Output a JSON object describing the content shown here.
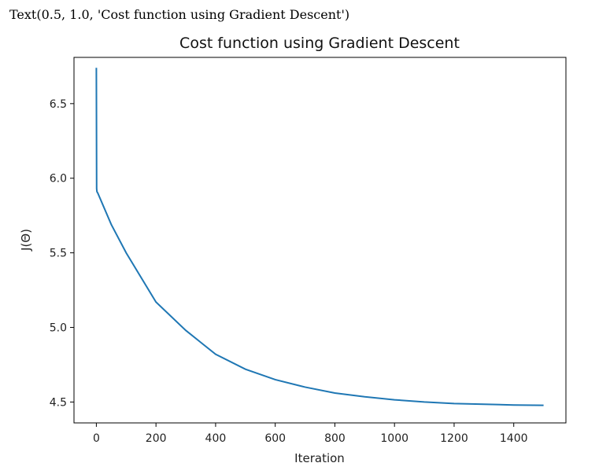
{
  "output_text": "Text(0.5, 1.0, 'Cost function using Gradient Descent')",
  "chart_data": {
    "type": "line",
    "title": "Cost function using Gradient Descent",
    "xlabel": "Iteration",
    "ylabel": "J(Θ)",
    "xlim": [
      -75,
      1575
    ],
    "ylim": [
      4.36,
      6.81
    ],
    "xticks": [
      0,
      200,
      400,
      600,
      800,
      1000,
      1200,
      1400
    ],
    "yticks": [
      4.5,
      5.0,
      5.5,
      6.0,
      6.5
    ],
    "ytick_labels": [
      "4.5",
      "5.0",
      "5.5",
      "6.0",
      "6.5"
    ],
    "grid": false,
    "line_color": "#1f77b4",
    "series": [
      {
        "x": [
          0,
          1,
          2,
          5,
          50,
          100,
          200,
          300,
          400,
          500,
          600,
          700,
          800,
          900,
          1000,
          1100,
          1200,
          1300,
          1400,
          1500
        ],
        "values": [
          6.74,
          5.93,
          5.91,
          5.9,
          5.69,
          5.5,
          5.17,
          4.98,
          4.82,
          4.72,
          4.65,
          4.6,
          4.56,
          4.535,
          4.515,
          4.5,
          4.49,
          4.485,
          4.48,
          4.478
        ]
      }
    ]
  }
}
